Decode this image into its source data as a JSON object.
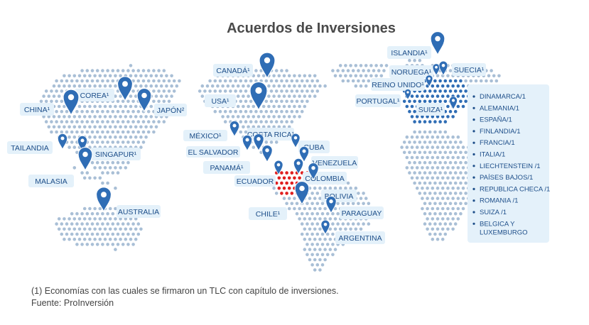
{
  "title": "Acuerdos de Inversiones",
  "colors": {
    "dots": "#a9bfd6",
    "dots_signed": "#2f6db5",
    "dots_chile": "#e02020",
    "pin": "#2f6db5",
    "label_bg": "#e4f1fa",
    "label_text": "#1d4e89",
    "title": "#4a4a4a"
  },
  "pin_icon": "map-marker-icon",
  "countries": [
    {
      "id": "canada",
      "label": "CANADÁ¹"
    },
    {
      "id": "usa",
      "label": "USA¹"
    },
    {
      "id": "mexico",
      "label": "MÉXICO¹"
    },
    {
      "id": "el-salvador",
      "label": "EL SALVADOR"
    },
    {
      "id": "costa-rica",
      "label": "COSTA RICA¹"
    },
    {
      "id": "cuba",
      "label": "CUBA"
    },
    {
      "id": "panama",
      "label": "PANAMÁ¹"
    },
    {
      "id": "venezuela",
      "label": "VENEZUELA"
    },
    {
      "id": "ecuador",
      "label": "ECUADOR"
    },
    {
      "id": "colombia",
      "label": "COLOMBIA"
    },
    {
      "id": "bolivia",
      "label": "BOLIVIA"
    },
    {
      "id": "chile",
      "label": "CHILE¹"
    },
    {
      "id": "paraguay",
      "label": "PARAGUAY"
    },
    {
      "id": "argentina",
      "label": "ARGENTINA"
    },
    {
      "id": "corea",
      "label": "COREA¹"
    },
    {
      "id": "china",
      "label": "CHINA¹"
    },
    {
      "id": "japon",
      "label": "JAPÓN²"
    },
    {
      "id": "tailandia",
      "label": "TAILANDIA"
    },
    {
      "id": "singapur",
      "label": "SINGAPUR¹"
    },
    {
      "id": "malasia",
      "label": "MALASIA"
    },
    {
      "id": "australia",
      "label": "AUSTRALIA"
    },
    {
      "id": "islandia",
      "label": "ISLANDIA¹"
    },
    {
      "id": "noruega",
      "label": "NORUEGA¹"
    },
    {
      "id": "suecia",
      "label": "SUECIA¹"
    },
    {
      "id": "reino-unido",
      "label": "REINO UNIDO¹"
    },
    {
      "id": "portugal",
      "label": "PORTUGAL¹"
    },
    {
      "id": "suiza",
      "label": "SUIZA¹"
    }
  ],
  "europe_list": [
    "DINAMARCA/1",
    "ALEMANIA/1",
    "ESPAÑA/1",
    "FINLANDIA/1",
    "FRANCIA/1",
    "ITALIA/1",
    "LIECHTENSTEIN /1",
    "PAÍSES BAJOS/1",
    "REPUBLICA CHECA /1",
    "ROMANIA /1",
    "SUIZA /1",
    "BELGICA Y LUXEMBURGO"
  ],
  "footnote": "(1) Economías con las cuales se firmaron un TLC con capítulo de inversiones.",
  "source": "Fuente: ProInversión"
}
